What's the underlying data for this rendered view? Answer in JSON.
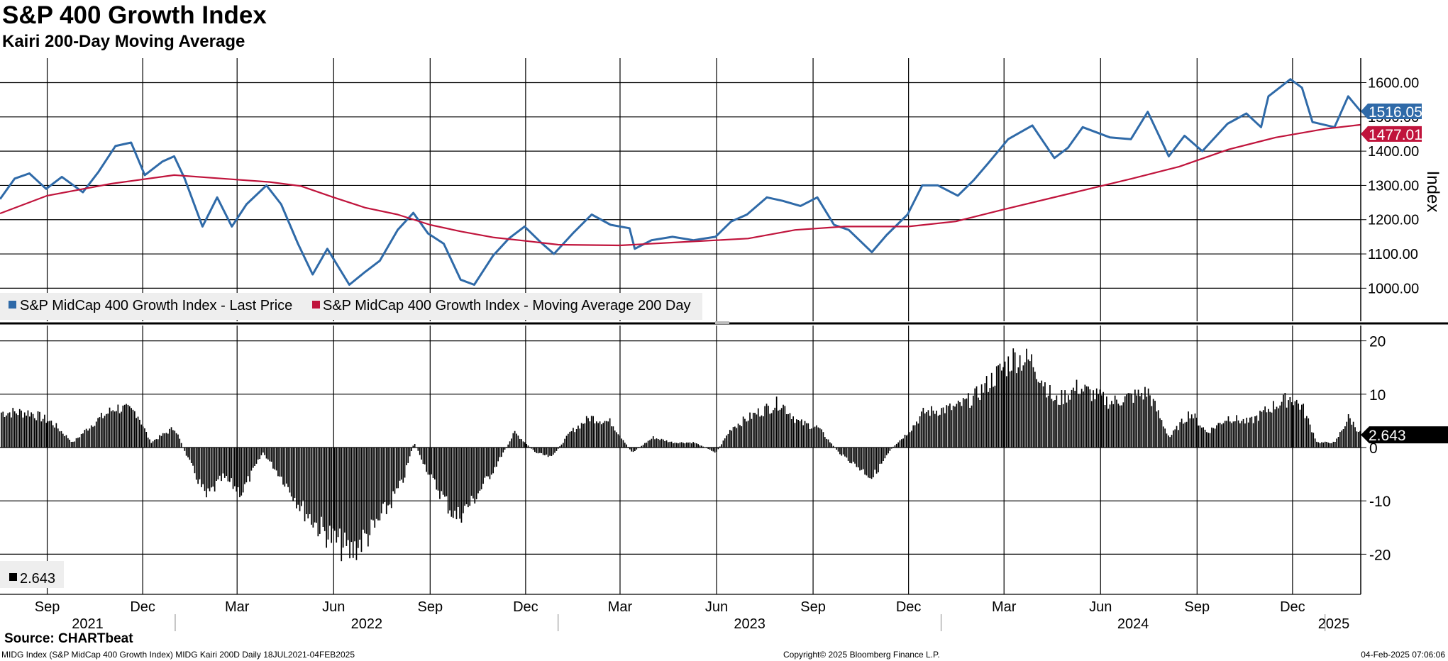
{
  "title": "S&P 400 Growth Index",
  "subtitle": "Kairi 200-Day Moving Average",
  "source": "Source: CHARTbeat",
  "footer": {
    "left": "MIDG Index (S&P MidCap 400 Growth Index) MIDG Kairi 200D  Daily 18JUL2021-04FEB2025",
    "center": "Copyright© 2025 Bloomberg Finance L.P.",
    "right": "04-Feb-2025 07:06:06"
  },
  "colors": {
    "price": "#2f6aa8",
    "ma": "#c0143c",
    "kairi": "#000000",
    "grid": "#000000"
  },
  "chart_data": [
    {
      "type": "line",
      "x_range": [
        "2021-07-18",
        "2025-02-04"
      ],
      "ylabel": "Index",
      "ylim": [
        950,
        1650
      ],
      "yticks": [
        "1000.00",
        "1100.00",
        "1200.00",
        "1300.00",
        "1400.00",
        "1500.00",
        "1600.00"
      ],
      "legend_position": "bottom-left",
      "grid": true,
      "series": [
        {
          "name": "S&P MidCap 400 Growth Index - Last Price",
          "color": "#2f6aa8",
          "last_value_label": "1516.05",
          "points": [
            [
              "2021-07-18",
              1260
            ],
            [
              "2021-08-01",
              1320
            ],
            [
              "2021-08-15",
              1335
            ],
            [
              "2021-08-31",
              1290
            ],
            [
              "2021-09-15",
              1325
            ],
            [
              "2021-10-05",
              1280
            ],
            [
              "2021-10-20",
              1340
            ],
            [
              "2021-11-05",
              1415
            ],
            [
              "2021-11-20",
              1425
            ],
            [
              "2021-12-03",
              1330
            ],
            [
              "2021-12-20",
              1370
            ],
            [
              "2021-12-31",
              1385
            ],
            [
              "2022-01-10",
              1320
            ],
            [
              "2022-01-27",
              1180
            ],
            [
              "2022-02-10",
              1265
            ],
            [
              "2022-02-24",
              1180
            ],
            [
              "2022-03-10",
              1245
            ],
            [
              "2022-03-29",
              1300
            ],
            [
              "2022-04-12",
              1245
            ],
            [
              "2022-04-28",
              1130
            ],
            [
              "2022-05-12",
              1040
            ],
            [
              "2022-05-26",
              1115
            ],
            [
              "2022-06-16",
              1010
            ],
            [
              "2022-06-30",
              1045
            ],
            [
              "2022-07-15",
              1080
            ],
            [
              "2022-08-01",
              1170
            ],
            [
              "2022-08-16",
              1220
            ],
            [
              "2022-08-30",
              1160
            ],
            [
              "2022-09-14",
              1130
            ],
            [
              "2022-09-30",
              1025
            ],
            [
              "2022-10-13",
              1010
            ],
            [
              "2022-10-31",
              1095
            ],
            [
              "2022-11-15",
              1145
            ],
            [
              "2022-11-30",
              1180
            ],
            [
              "2022-12-15",
              1135
            ],
            [
              "2022-12-28",
              1100
            ],
            [
              "2023-01-15",
              1160
            ],
            [
              "2023-02-02",
              1215
            ],
            [
              "2023-02-20",
              1185
            ],
            [
              "2023-03-10",
              1175
            ],
            [
              "2023-03-15",
              1115
            ],
            [
              "2023-03-31",
              1140
            ],
            [
              "2023-04-20",
              1150
            ],
            [
              "2023-05-10",
              1140
            ],
            [
              "2023-05-31",
              1150
            ],
            [
              "2023-06-15",
              1195
            ],
            [
              "2023-06-30",
              1215
            ],
            [
              "2023-07-19",
              1265
            ],
            [
              "2023-08-03",
              1255
            ],
            [
              "2023-08-20",
              1240
            ],
            [
              "2023-09-05",
              1265
            ],
            [
              "2023-09-21",
              1185
            ],
            [
              "2023-10-05",
              1170
            ],
            [
              "2023-10-27",
              1105
            ],
            [
              "2023-11-10",
              1155
            ],
            [
              "2023-11-30",
              1215
            ],
            [
              "2023-12-14",
              1300
            ],
            [
              "2023-12-29",
              1300
            ],
            [
              "2024-01-17",
              1270
            ],
            [
              "2024-02-01",
              1315
            ],
            [
              "2024-02-15",
              1365
            ],
            [
              "2024-03-05",
              1435
            ],
            [
              "2024-03-28",
              1475
            ],
            [
              "2024-04-18",
              1380
            ],
            [
              "2024-05-01",
              1410
            ],
            [
              "2024-05-15",
              1470
            ],
            [
              "2024-06-10",
              1440
            ],
            [
              "2024-06-30",
              1435
            ],
            [
              "2024-07-16",
              1515
            ],
            [
              "2024-08-05",
              1385
            ],
            [
              "2024-08-20",
              1445
            ],
            [
              "2024-09-06",
              1400
            ],
            [
              "2024-09-30",
              1480
            ],
            [
              "2024-10-18",
              1510
            ],
            [
              "2024-11-01",
              1470
            ],
            [
              "2024-11-08",
              1560
            ],
            [
              "2024-11-29",
              1610
            ],
            [
              "2024-12-10",
              1585
            ],
            [
              "2024-12-20",
              1485
            ],
            [
              "2025-01-10",
              1470
            ],
            [
              "2025-01-23",
              1560
            ],
            [
              "2025-02-04",
              1516
            ]
          ]
        },
        {
          "name": "S&P MidCap 400 Growth Index - Moving Average 200 Day",
          "color": "#c0143c",
          "last_value_label": "1477.01",
          "points": [
            [
              "2021-07-18",
              1218
            ],
            [
              "2021-09-01",
              1270
            ],
            [
              "2021-11-01",
              1305
            ],
            [
              "2021-12-31",
              1330
            ],
            [
              "2022-02-15",
              1320
            ],
            [
              "2022-04-01",
              1310
            ],
            [
              "2022-05-01",
              1298
            ],
            [
              "2022-06-01",
              1265
            ],
            [
              "2022-07-01",
              1235
            ],
            [
              "2022-08-01",
              1215
            ],
            [
              "2022-09-01",
              1185
            ],
            [
              "2022-10-01",
              1165
            ],
            [
              "2022-11-01",
              1148
            ],
            [
              "2022-12-01",
              1138
            ],
            [
              "2023-01-01",
              1127
            ],
            [
              "2023-03-01",
              1125
            ],
            [
              "2023-05-01",
              1135
            ],
            [
              "2023-07-01",
              1145
            ],
            [
              "2023-08-15",
              1170
            ],
            [
              "2023-10-01",
              1180
            ],
            [
              "2023-12-01",
              1180
            ],
            [
              "2024-01-15",
              1195
            ],
            [
              "2024-03-01",
              1230
            ],
            [
              "2024-05-01",
              1275
            ],
            [
              "2024-07-01",
              1320
            ],
            [
              "2024-08-15",
              1355
            ],
            [
              "2024-10-01",
              1405
            ],
            [
              "2024-11-15",
              1440
            ],
            [
              "2025-01-01",
              1465
            ],
            [
              "2025-02-04",
              1477
            ]
          ]
        }
      ]
    },
    {
      "type": "bar",
      "x_range": [
        "2021-07-18",
        "2025-02-04"
      ],
      "ylim": [
        -27,
        22
      ],
      "yticks": [
        "20",
        "10",
        "0",
        "-10",
        "-20"
      ],
      "legend_position": "bottom-left",
      "grid": true,
      "series": [
        {
          "name": "2.643",
          "color": "#000000",
          "last_value_label": "2.643",
          "points": [
            [
              "2021-07-18",
              7
            ],
            [
              "2021-08-15",
              7
            ],
            [
              "2021-09-05",
              5
            ],
            [
              "2021-09-25",
              1
            ],
            [
              "2021-10-15",
              5
            ],
            [
              "2021-11-05",
              8
            ],
            [
              "2021-11-25",
              7
            ],
            [
              "2021-12-08",
              1
            ],
            [
              "2021-12-31",
              4
            ],
            [
              "2022-01-10",
              -1
            ],
            [
              "2022-01-30",
              -10
            ],
            [
              "2022-02-15",
              -6
            ],
            [
              "2022-03-05",
              -9
            ],
            [
              "2022-03-25",
              -1
            ],
            [
              "2022-04-12",
              -6
            ],
            [
              "2022-05-01",
              -12
            ],
            [
              "2022-05-18",
              -16
            ],
            [
              "2022-06-16",
              -21
            ],
            [
              "2022-07-10",
              -16
            ],
            [
              "2022-08-05",
              -7
            ],
            [
              "2022-08-16",
              1
            ],
            [
              "2022-09-01",
              -6
            ],
            [
              "2022-09-25",
              -14
            ],
            [
              "2022-10-10",
              -11
            ],
            [
              "2022-11-01",
              -4
            ],
            [
              "2022-11-20",
              3
            ],
            [
              "2022-12-10",
              -1
            ],
            [
              "2022-12-25",
              -2
            ],
            [
              "2023-01-12",
              3
            ],
            [
              "2023-01-31",
              6
            ],
            [
              "2023-02-20",
              5
            ],
            [
              "2023-03-12",
              -1
            ],
            [
              "2023-04-01",
              2
            ],
            [
              "2023-04-20",
              1
            ],
            [
              "2023-05-10",
              1
            ],
            [
              "2023-05-31",
              -1
            ],
            [
              "2023-06-15",
              4
            ],
            [
              "2023-07-10",
              7
            ],
            [
              "2023-07-31",
              9
            ],
            [
              "2023-08-18",
              5
            ],
            [
              "2023-09-05",
              4
            ],
            [
              "2023-09-25",
              -1
            ],
            [
              "2023-10-27",
              -6
            ],
            [
              "2023-11-15",
              0
            ],
            [
              "2023-11-30",
              3
            ],
            [
              "2023-12-15",
              7
            ],
            [
              "2024-01-15",
              8
            ],
            [
              "2024-02-01",
              10
            ],
            [
              "2024-02-20",
              14
            ],
            [
              "2024-03-10",
              18
            ],
            [
              "2024-03-28",
              17
            ],
            [
              "2024-04-18",
              9
            ],
            [
              "2024-05-10",
              12
            ],
            [
              "2024-06-10",
              9
            ],
            [
              "2024-07-16",
              11
            ],
            [
              "2024-08-05",
              2
            ],
            [
              "2024-08-25",
              7
            ],
            [
              "2024-09-10",
              3
            ],
            [
              "2024-09-30",
              6
            ],
            [
              "2024-10-20",
              5
            ],
            [
              "2024-11-10",
              8
            ],
            [
              "2024-11-29",
              10
            ],
            [
              "2024-12-10",
              8
            ],
            [
              "2024-12-24",
              1
            ],
            [
              "2025-01-10",
              1
            ],
            [
              "2025-01-23",
              6
            ],
            [
              "2025-02-04",
              2.6
            ]
          ]
        }
      ]
    }
  ],
  "x_axis": {
    "month_labels": [
      "Sep",
      "Dec",
      "Mar",
      "Jun",
      "Sep",
      "Dec",
      "Mar",
      "Jun",
      "Sep",
      "Dec",
      "Mar",
      "Jun",
      "Sep",
      "Dec"
    ],
    "year_labels": [
      "2021",
      "2022",
      "2023",
      "2024",
      "2025"
    ]
  }
}
